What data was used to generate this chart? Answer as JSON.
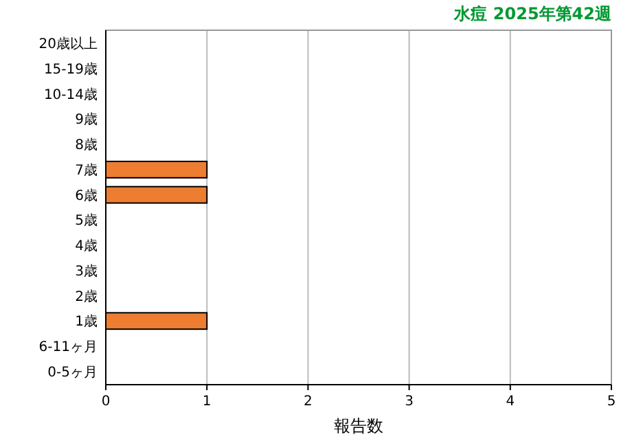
{
  "chart_data": {
    "type": "bar",
    "orientation": "horizontal",
    "title": "水痘 2025年第42週",
    "xlabel": "報告数",
    "categories": [
      "20歳以上",
      "15-19歳",
      "10-14歳",
      "9歳",
      "8歳",
      "7歳",
      "6歳",
      "5歳",
      "4歳",
      "3歳",
      "2歳",
      "1歳",
      "6-11ヶ月",
      "0-5ヶ月"
    ],
    "values": [
      0,
      0,
      0,
      0,
      0,
      1,
      1,
      0,
      0,
      0,
      0,
      1,
      0,
      0
    ],
    "color": "#ed7d31",
    "xlim": [
      0,
      5
    ],
    "xticks": [
      0,
      1,
      2,
      3,
      4,
      5
    ],
    "grid": "x"
  }
}
